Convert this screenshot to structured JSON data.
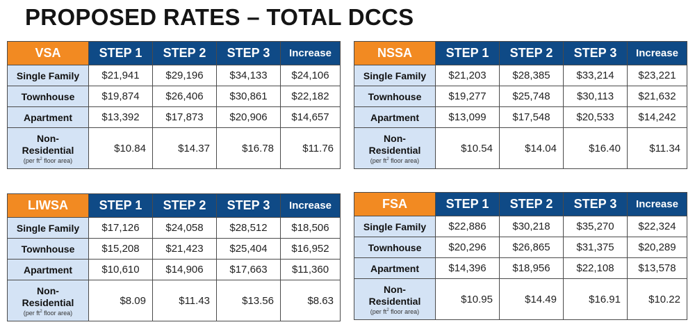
{
  "title": "PROPOSED RATES – TOTAL DCCS",
  "columns": [
    "STEP 1",
    "STEP 2",
    "STEP 3",
    "Increase"
  ],
  "row_labels": {
    "single_family": "Single Family",
    "townhouse": "Townhouse",
    "apartment": "Apartment",
    "non_res_line1": "Non-",
    "non_res_line2": "Residential",
    "non_res_note_a": "(per ft",
    "non_res_note_sup": "2",
    "non_res_note_b": " floor area)"
  },
  "tables": [
    {
      "region": "VSA",
      "single_family": [
        "$21,941",
        "$29,196",
        "$34,133",
        "$24,106"
      ],
      "townhouse": [
        "$19,874",
        "$26,406",
        "$30,861",
        "$22,182"
      ],
      "apartment": [
        "$13,392",
        "$17,873",
        "$20,906",
        "$14,657"
      ],
      "non_residential": [
        "$10.84",
        "$14.37",
        "$16.78",
        "$11.76"
      ]
    },
    {
      "region": "NSSA",
      "single_family": [
        "$21,203",
        "$28,385",
        "$33,214",
        "$23,221"
      ],
      "townhouse": [
        "$19,277",
        "$25,748",
        "$30,113",
        "$21,632"
      ],
      "apartment": [
        "$13,099",
        "$17,548",
        "$20,533",
        "$14,242"
      ],
      "non_residential": [
        "$10.54",
        "$14.04",
        "$16.40",
        "$11.34"
      ]
    },
    {
      "region": "LIWSA",
      "single_family": [
        "$17,126",
        "$24,058",
        "$28,512",
        "$18,506"
      ],
      "townhouse": [
        "$15,208",
        "$21,423",
        "$25,404",
        "$16,952"
      ],
      "apartment": [
        "$10,610",
        "$14,906",
        "$17,663",
        "$11,360"
      ],
      "non_residential": [
        "$8.09",
        "$11.43",
        "$13.56",
        "$8.63"
      ]
    },
    {
      "region": "FSA",
      "single_family": [
        "$22,886",
        "$30,218",
        "$35,270",
        "$22,324"
      ],
      "townhouse": [
        "$20,296",
        "$26,865",
        "$31,375",
        "$20,289"
      ],
      "apartment": [
        "$14,396",
        "$18,956",
        "$22,108",
        "$13,578"
      ],
      "non_residential": [
        "$10.95",
        "$14.49",
        "$16.91",
        "$10.22"
      ]
    }
  ]
}
